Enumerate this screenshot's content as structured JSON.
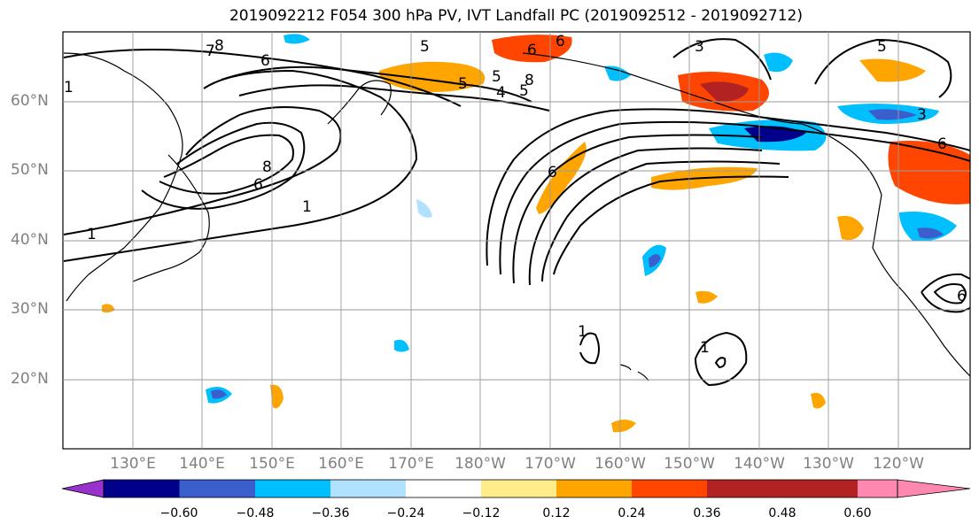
{
  "title": "2019092212 F054 300 hPa PV, IVT Landfall PC (2019092512 - 2019092712)",
  "lat_labels": [
    "60°N",
    "50°N",
    "40°N",
    "30°N",
    "20°N"
  ],
  "lon_labels": [
    "130°E",
    "140°E",
    "150°E",
    "160°E",
    "170°E",
    "180°W",
    "170°W",
    "160°W",
    "150°W",
    "140°W",
    "130°W",
    "120°W"
  ],
  "contour_labels": [
    "8",
    "6",
    "5",
    "6",
    "5",
    "8",
    "6",
    "8",
    "6",
    "1",
    "1",
    "5",
    "4",
    "5",
    "6",
    "3",
    "5",
    "3",
    "6",
    "1",
    "6",
    "1",
    "7",
    "1"
  ],
  "colorbar": {
    "ticks": [
      "−0.60",
      "−0.48",
      "−0.36",
      "−0.24",
      "−0.12",
      "0.12",
      "0.24",
      "0.36",
      "0.48",
      "0.60"
    ],
    "colors": [
      "#9932cc",
      "#00008b",
      "#3a5fcd",
      "#00bfff",
      "#b0e2ff",
      "#ffffff",
      "#ffec8b",
      "#ffa500",
      "#ff4500",
      "#b22222",
      "#ff88b0"
    ]
  }
}
